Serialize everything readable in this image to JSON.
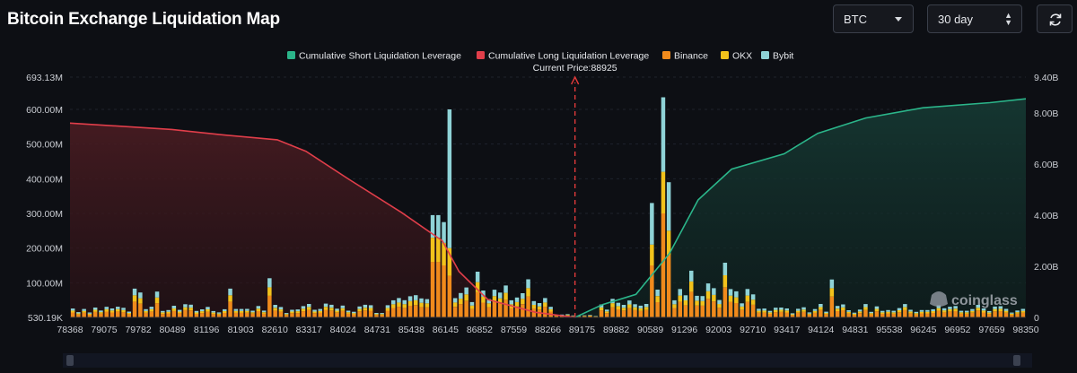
{
  "page": {
    "title": "Bitcoin Exchange Liquidation Map",
    "coin_select": "BTC",
    "range_select": "30 day",
    "refresh_icon": "refresh-icon"
  },
  "colors": {
    "background": "#0d0f14",
    "short_line": "#2bb58a",
    "long_line": "#e03e4a",
    "binance": "#f08a1c",
    "okx": "#f2c21b",
    "bybit": "#8fd3d7",
    "current_price": "#e23a3a"
  },
  "chart_data": {
    "type": "bar",
    "title": "Bitcoin Exchange Liquidation Map",
    "legend_position": "top-center",
    "legend": [
      "Cumulative Short Liquidation Leverage",
      "Cumulative Long Liquidation Leverage",
      "Binance",
      "OKX",
      "Bybit"
    ],
    "current_price_label": "Current Price:88925",
    "current_price": 88925,
    "x_range": [
      78368,
      98350
    ],
    "x_tick_labels": [
      "78368",
      "79075",
      "79782",
      "80489",
      "81196",
      "81903",
      "82610",
      "83317",
      "84024",
      "84731",
      "85438",
      "86145",
      "86852",
      "87559",
      "88266",
      "89175",
      "89882",
      "90589",
      "91296",
      "92003",
      "92710",
      "93417",
      "94124",
      "94831",
      "95538",
      "96245",
      "96952",
      "97659",
      "98350"
    ],
    "y_left": {
      "min_label": "530.19K",
      "max_label": "693.13M",
      "ticks": [
        "100.00M",
        "200.00M",
        "300.00M",
        "400.00M",
        "500.00M",
        "600.00M"
      ],
      "ylim": [
        0,
        693.13
      ]
    },
    "y_right": {
      "ticks": [
        "0",
        "2.00B",
        "4.00B",
        "6.00B",
        "8.00B",
        "9.40B"
      ],
      "ylim": [
        0,
        9.4
      ]
    },
    "bar_peaks": [
      {
        "price": 86000,
        "binance": 160,
        "okx": 70,
        "bybit": 65
      },
      {
        "price": 86145,
        "binance": 150,
        "okx": 65,
        "bybit": 60
      },
      {
        "price": 86290,
        "binance": 120,
        "okx": 80,
        "bybit": 400
      },
      {
        "price": 90500,
        "binance": 150,
        "okx": 60,
        "bybit": 120
      },
      {
        "price": 90730,
        "binance": 300,
        "okx": 120,
        "bybit": 215
      },
      {
        "price": 90850,
        "binance": 180,
        "okx": 70,
        "bybit": 140
      }
    ],
    "cumulative_long": [
      {
        "price": 78368,
        "value": 7.6
      },
      {
        "price": 80500,
        "value": 7.35
      },
      {
        "price": 81500,
        "value": 7.15
      },
      {
        "price": 82700,
        "value": 6.95
      },
      {
        "price": 83300,
        "value": 6.5
      },
      {
        "price": 84200,
        "value": 5.4
      },
      {
        "price": 85300,
        "value": 4.1
      },
      {
        "price": 86150,
        "value": 3.0
      },
      {
        "price": 86500,
        "value": 1.8
      },
      {
        "price": 87100,
        "value": 0.7
      },
      {
        "price": 88100,
        "value": 0.2
      },
      {
        "price": 88925,
        "value": 0.0
      }
    ],
    "cumulative_short": [
      {
        "price": 88925,
        "value": 0.0
      },
      {
        "price": 89500,
        "value": 0.5
      },
      {
        "price": 90200,
        "value": 0.9
      },
      {
        "price": 90900,
        "value": 2.5
      },
      {
        "price": 91500,
        "value": 4.6
      },
      {
        "price": 92200,
        "value": 5.8
      },
      {
        "price": 93300,
        "value": 6.4
      },
      {
        "price": 94000,
        "value": 7.2
      },
      {
        "price": 95000,
        "value": 7.8
      },
      {
        "price": 96200,
        "value": 8.2
      },
      {
        "price": 97600,
        "value": 8.4
      },
      {
        "price": 98350,
        "value": 8.55
      }
    ]
  },
  "watermark": "coinglass"
}
